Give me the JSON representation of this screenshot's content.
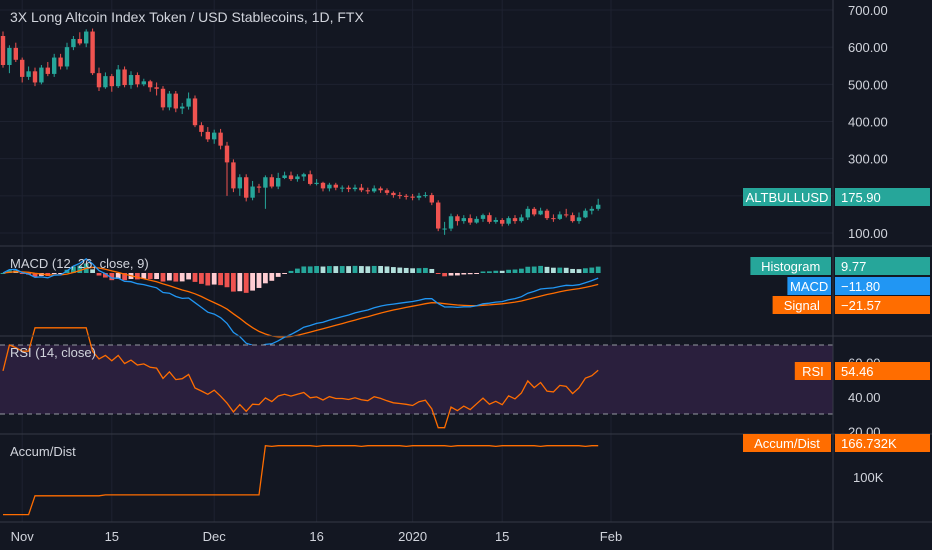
{
  "header": {
    "title": "3X Long Altcoin Index Token / USD Stablecoins, 1D, FTX"
  },
  "colors": {
    "background": "#131722",
    "grid": "#1e2230",
    "up": "#26a69a",
    "down": "#ef5350",
    "macd": "#2196f3",
    "signal": "#ff6d00",
    "rsi": "#ff6d00",
    "rsi_band": "#2a1f3d",
    "accum": "#ff6d00",
    "text": "#d1d4dc",
    "separator": "#363a45"
  },
  "chart_data": [
    {
      "type": "candlestick",
      "title": "3X Long Altcoin Index Token / USD Stablecoins, 1D, FTX",
      "yticks": [
        "700.00",
        "600.00",
        "500.00",
        "400.00",
        "300.00",
        "200.00",
        "100.00"
      ],
      "ylim": [
        50,
        710
      ],
      "price_label": {
        "name": "ALTBULLUSD",
        "value": "175.90"
      },
      "candles": [
        [
          630,
          552,
          642,
          545
        ],
        [
          552,
          598,
          605,
          530
        ],
        [
          598,
          566,
          612,
          560
        ],
        [
          566,
          520,
          572,
          505
        ],
        [
          520,
          535,
          548,
          512
        ],
        [
          535,
          505,
          545,
          495
        ],
        [
          505,
          545,
          552,
          500
        ],
        [
          545,
          528,
          560,
          522
        ],
        [
          528,
          572,
          582,
          520
        ],
        [
          572,
          548,
          582,
          540
        ],
        [
          548,
          600,
          612,
          540
        ],
        [
          600,
          622,
          630,
          592
        ],
        [
          622,
          610,
          640,
          605
        ],
        [
          610,
          642,
          648,
          600
        ],
        [
          642,
          530,
          650,
          525
        ],
        [
          530,
          492,
          545,
          482
        ],
        [
          492,
          522,
          532,
          488
        ],
        [
          522,
          495,
          528,
          480
        ],
        [
          495,
          540,
          552,
          490
        ],
        [
          540,
          498,
          548,
          492
        ],
        [
          498,
          525,
          535,
          488
        ],
        [
          525,
          500,
          532,
          492
        ],
        [
          500,
          508,
          515,
          495
        ],
        [
          508,
          492,
          512,
          480
        ],
        [
          492,
          488,
          505,
          470
        ],
        [
          488,
          438,
          495,
          430
        ],
        [
          438,
          475,
          482,
          430
        ],
        [
          475,
          435,
          482,
          425
        ],
        [
          435,
          440,
          450,
          420
        ],
        [
          440,
          462,
          478,
          432
        ],
        [
          462,
          390,
          470,
          385
        ],
        [
          390,
          372,
          398,
          360
        ],
        [
          372,
          352,
          385,
          345
        ],
        [
          352,
          370,
          378,
          340
        ],
        [
          370,
          335,
          380,
          325
        ],
        [
          335,
          290,
          345,
          200
        ],
        [
          290,
          220,
          298,
          210
        ],
        [
          220,
          250,
          258,
          200
        ],
        [
          250,
          195,
          258,
          185
        ],
        [
          195,
          225,
          240,
          188
        ],
        [
          225,
          222,
          232,
          208
        ],
        [
          222,
          250,
          255,
          165
        ],
        [
          250,
          225,
          258,
          220
        ],
        [
          225,
          248,
          262,
          218
        ],
        [
          248,
          255,
          265,
          245
        ],
        [
          255,
          245,
          265,
          240
        ],
        [
          245,
          252,
          258,
          238
        ],
        [
          252,
          258,
          262,
          240
        ],
        [
          258,
          232,
          268,
          228
        ],
        [
          232,
          235,
          245,
          228
        ],
        [
          235,
          220,
          238,
          212
        ],
        [
          220,
          230,
          235,
          212
        ],
        [
          230,
          222,
          235,
          215
        ],
        [
          222,
          222,
          228,
          210
        ],
        [
          222,
          218,
          228,
          210
        ],
        [
          218,
          222,
          230,
          212
        ],
        [
          222,
          215,
          232,
          210
        ],
        [
          215,
          212,
          222,
          205
        ],
        [
          212,
          220,
          228,
          208
        ],
        [
          220,
          215,
          225,
          208
        ],
        [
          215,
          208,
          220,
          202
        ],
        [
          208,
          202,
          212,
          195
        ],
        [
          202,
          200,
          210,
          192
        ],
        [
          200,
          198,
          205,
          190
        ],
        [
          198,
          195,
          205,
          188
        ],
        [
          195,
          200,
          208,
          188
        ],
        [
          200,
          202,
          210,
          195
        ],
        [
          202,
          182,
          208,
          175
        ],
        [
          182,
          112,
          188,
          105
        ],
        [
          112,
          112,
          130,
          95
        ],
        [
          112,
          145,
          152,
          105
        ],
        [
          145,
          132,
          150,
          120
        ],
        [
          132,
          140,
          148,
          125
        ],
        [
          140,
          128,
          150,
          122
        ],
        [
          128,
          138,
          145,
          125
        ],
        [
          138,
          148,
          152,
          130
        ],
        [
          148,
          130,
          155,
          125
        ],
        [
          130,
          135,
          142,
          125
        ],
        [
          135,
          125,
          140,
          118
        ],
        [
          125,
          140,
          145,
          120
        ],
        [
          140,
          132,
          148,
          125
        ],
        [
          132,
          142,
          150,
          128
        ],
        [
          142,
          165,
          172,
          135
        ],
        [
          165,
          150,
          170,
          145
        ],
        [
          150,
          160,
          168,
          148
        ],
        [
          160,
          140,
          165,
          135
        ],
        [
          140,
          138,
          150,
          130
        ],
        [
          138,
          150,
          158,
          135
        ],
        [
          150,
          148,
          165,
          142
        ],
        [
          148,
          132,
          155,
          128
        ],
        [
          132,
          142,
          155,
          125
        ],
        [
          142,
          160,
          166,
          140
        ],
        [
          160,
          165,
          172,
          150
        ],
        [
          165,
          176,
          192,
          160
        ]
      ]
    },
    {
      "type": "line",
      "title": "MACD (12, 26, close, 9)",
      "histogram_label": {
        "name": "Histogram",
        "value": "9.77"
      },
      "macd_label": {
        "name": "MACD",
        "value": "−11.80"
      },
      "signal_label": {
        "name": "Signal",
        "value": "−21.57"
      },
      "ylim": [
        -65,
        20
      ]
    },
    {
      "type": "line",
      "title": "RSI (14, close)",
      "yticks": [
        "60.00",
        "40.00",
        "20.00"
      ],
      "ylim": [
        14,
        78
      ],
      "bands": [
        30,
        70
      ],
      "value_label": {
        "name": "RSI",
        "value": "54.46"
      }
    },
    {
      "type": "line",
      "title": "Accum/Dist",
      "yticks": [
        "100K"
      ],
      "value_label": {
        "name": "Accum/Dist",
        "value": "166.732K"
      }
    }
  ],
  "xaxis": {
    "ticks": [
      {
        "label": "Nov",
        "day": 3
      },
      {
        "label": "15",
        "day": 17
      },
      {
        "label": "Dec",
        "day": 33
      },
      {
        "label": "16",
        "day": 49
      },
      {
        "label": "2020",
        "day": 64
      },
      {
        "label": "15",
        "day": 78
      },
      {
        "label": "Feb",
        "day": 95
      }
    ]
  }
}
